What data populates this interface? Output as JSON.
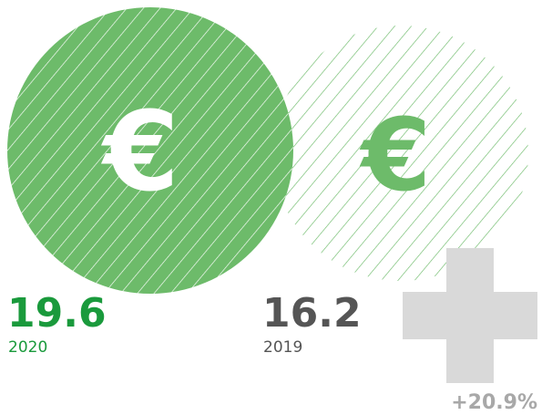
{
  "items": [
    {
      "value": "19.6",
      "year": "2020"
    },
    {
      "value": "16.2",
      "year": "2019"
    }
  ],
  "change": "+20.9%"
}
